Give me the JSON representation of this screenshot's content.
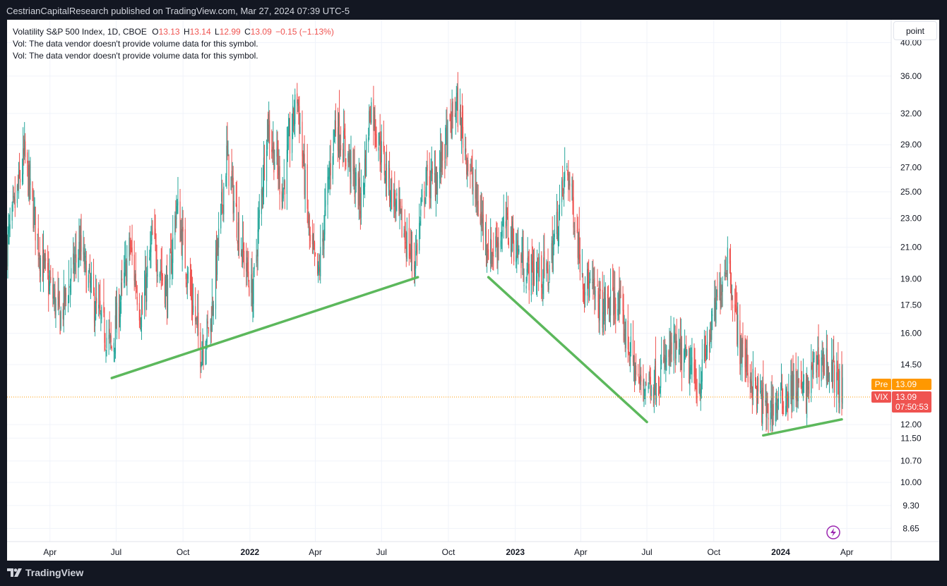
{
  "header": {
    "published": "CestrianCapitalResearch published on TradingView.com, Mar 27, 2024 07:39 UTC-5"
  },
  "legend": {
    "symbol": "Volatility S&P 500 Index, 1D, CBOE",
    "o_label": "O",
    "o_value": "13.13",
    "h_label": "H",
    "h_value": "13.14",
    "l_label": "L",
    "l_value": "12.99",
    "c_label": "C",
    "c_value": "13.09",
    "change": "−0.15 (−1.13%)",
    "vol_line1": "Vol: The data vendor doesn't provide volume data for this symbol.",
    "vol_line2": "Vol: The data vendor doesn't provide volume data for this symbol."
  },
  "scale_button": "point",
  "footer": {
    "brand": "TradingView"
  },
  "colors": {
    "up": "#26a69a",
    "down": "#ef5350",
    "trendline": "#5cb85c",
    "pre_tag": "#ff9800",
    "last_tag": "#ef5350",
    "grid": "#f0f3fa"
  },
  "chart_data": {
    "type": "candlestick",
    "scale": "log",
    "ylim": [
      8.3,
      43
    ],
    "yticks": [
      40.0,
      36.0,
      32.0,
      29.0,
      27.0,
      25.0,
      23.0,
      21.0,
      19.0,
      17.5,
      16.0,
      14.5,
      12.0,
      11.5,
      10.7,
      10.0,
      9.3,
      8.65
    ],
    "ytick_labels": [
      "40.00",
      "36.00",
      "32.00",
      "29.00",
      "27.00",
      "25.00",
      "23.00",
      "21.00",
      "19.00",
      "17.50",
      "16.00",
      "14.50",
      "12.00",
      "11.50",
      "10.70",
      "10.00",
      "9.30",
      "8.65"
    ],
    "xlim": [
      "2021-02-01",
      "2024-06-01"
    ],
    "xticks": [
      {
        "date": "2021-04-01",
        "label": "Apr",
        "bold": false
      },
      {
        "date": "2021-07-01",
        "label": "Jul",
        "bold": false
      },
      {
        "date": "2021-10-01",
        "label": "Oct",
        "bold": false
      },
      {
        "date": "2022-01-01",
        "label": "2022",
        "bold": true
      },
      {
        "date": "2022-04-01",
        "label": "Apr",
        "bold": false
      },
      {
        "date": "2022-07-01",
        "label": "Jul",
        "bold": false
      },
      {
        "date": "2022-10-01",
        "label": "Oct",
        "bold": false
      },
      {
        "date": "2023-01-01",
        "label": "2023",
        "bold": true
      },
      {
        "date": "2023-04-01",
        "label": "Apr",
        "bold": false
      },
      {
        "date": "2023-07-01",
        "label": "Jul",
        "bold": false
      },
      {
        "date": "2023-10-01",
        "label": "Oct",
        "bold": false
      },
      {
        "date": "2024-01-01",
        "label": "2024",
        "bold": true
      },
      {
        "date": "2024-04-01",
        "label": "Apr",
        "bold": false
      }
    ],
    "anchors": [
      [
        "2021-02-01",
        21
      ],
      [
        "2021-02-25",
        28
      ],
      [
        "2021-03-20",
        20
      ],
      [
        "2021-04-15",
        16.8
      ],
      [
        "2021-05-12",
        21
      ],
      [
        "2021-06-01",
        17.5
      ],
      [
        "2021-06-25",
        15.2
      ],
      [
        "2021-07-20",
        21
      ],
      [
        "2021-08-05",
        16.8
      ],
      [
        "2021-08-20",
        21.5
      ],
      [
        "2021-09-10",
        18
      ],
      [
        "2021-09-22",
        24
      ],
      [
        "2021-10-10",
        18.5
      ],
      [
        "2021-10-25",
        15.2
      ],
      [
        "2021-11-08",
        16.5
      ],
      [
        "2021-11-30",
        28
      ],
      [
        "2021-12-20",
        21
      ],
      [
        "2022-01-05",
        18
      ],
      [
        "2022-01-25",
        31
      ],
      [
        "2022-02-15",
        25
      ],
      [
        "2022-03-07",
        34
      ],
      [
        "2022-03-25",
        21
      ],
      [
        "2022-04-05",
        19
      ],
      [
        "2022-04-28",
        31
      ],
      [
        "2022-05-15",
        28
      ],
      [
        "2022-06-03",
        24
      ],
      [
        "2022-06-16",
        33
      ],
      [
        "2022-07-05",
        27
      ],
      [
        "2022-07-25",
        23
      ],
      [
        "2022-08-15",
        19.8
      ],
      [
        "2022-08-30",
        25.5
      ],
      [
        "2022-09-15",
        26
      ],
      [
        "2022-10-12",
        33
      ],
      [
        "2022-11-05",
        25
      ],
      [
        "2022-11-28",
        20.5
      ],
      [
        "2022-12-20",
        22.5
      ],
      [
        "2023-01-15",
        19.5
      ],
      [
        "2023-02-15",
        19.2
      ],
      [
        "2023-03-13",
        27
      ],
      [
        "2023-04-05",
        19
      ],
      [
        "2023-05-01",
        17.2
      ],
      [
        "2023-05-20",
        17.8
      ],
      [
        "2023-06-20",
        13.6
      ],
      [
        "2023-07-15",
        13.8
      ],
      [
        "2023-08-05",
        15.2
      ],
      [
        "2023-08-25",
        14.5
      ],
      [
        "2023-09-10",
        13.5
      ],
      [
        "2023-10-05",
        17.5
      ],
      [
        "2023-10-20",
        20.5
      ],
      [
        "2023-11-05",
        15.5
      ],
      [
        "2023-11-25",
        13.5
      ],
      [
        "2023-12-12",
        12.5
      ],
      [
        "2023-12-28",
        12.8
      ],
      [
        "2024-01-18",
        13.5
      ],
      [
        "2024-02-05",
        13.2
      ],
      [
        "2024-02-20",
        14.8
      ],
      [
        "2024-03-05",
        14.5
      ],
      [
        "2024-03-18",
        13.8
      ],
      [
        "2024-03-27",
        13.09
      ]
    ],
    "trendlines": [
      {
        "from": [
          "2021-06-25",
          13.9
        ],
        "to": [
          "2022-08-20",
          19.1
        ]
      },
      {
        "from": [
          "2022-11-25",
          19.1
        ],
        "to": [
          "2023-07-01",
          12.1
        ]
      },
      {
        "from": [
          "2023-12-08",
          11.6
        ],
        "to": [
          "2024-03-25",
          12.2
        ]
      }
    ],
    "last_price": 13.09,
    "price_tags": [
      {
        "label": "Pre",
        "value": "13.09"
      },
      {
        "label": "VIX",
        "value": "13.09",
        "countdown": "07:50:53"
      }
    ]
  }
}
